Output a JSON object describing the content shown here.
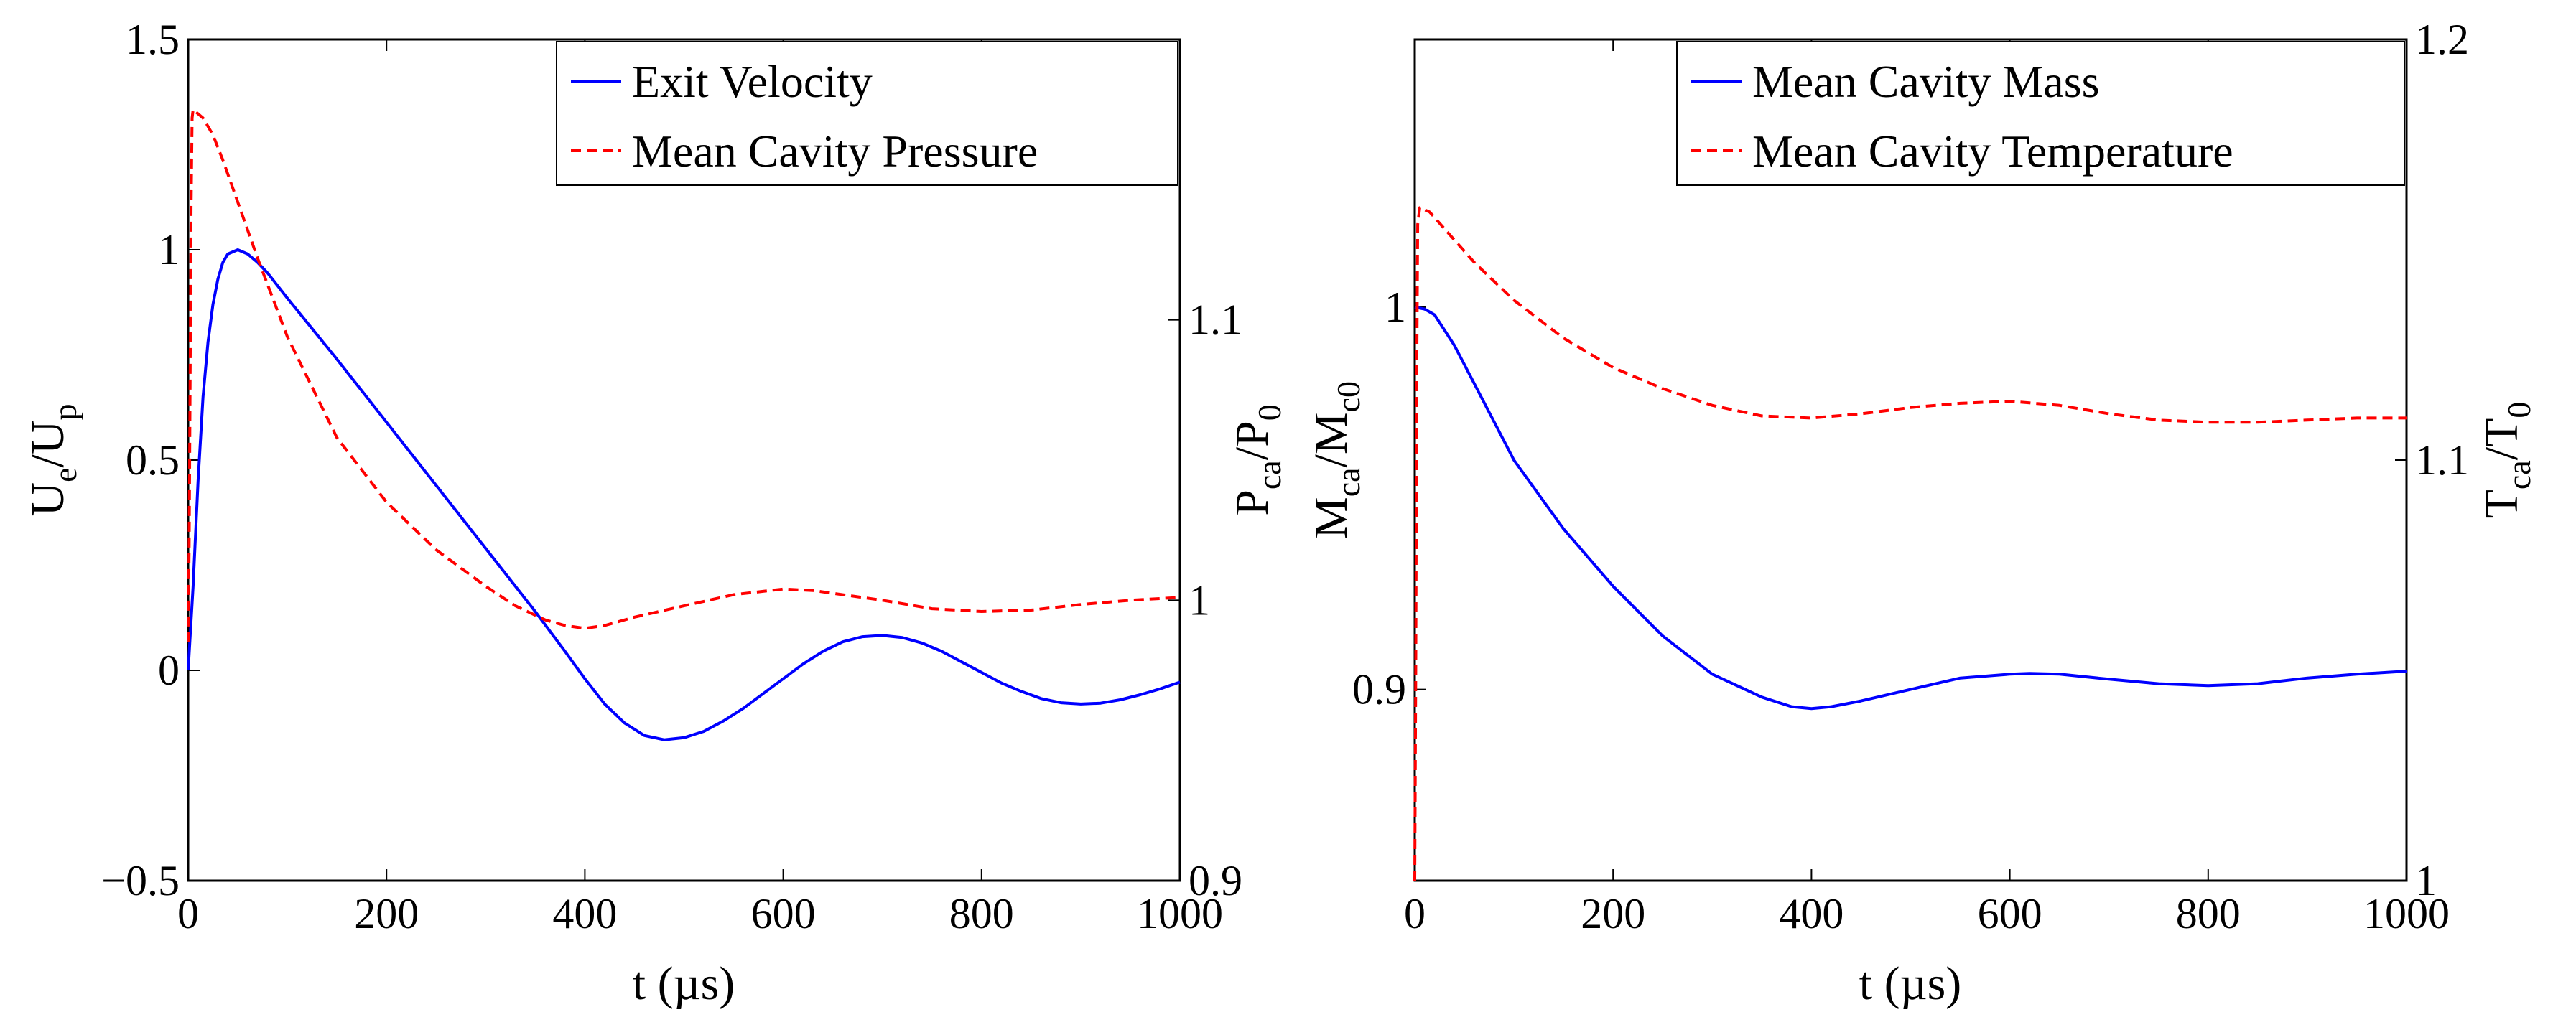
{
  "chart_data": [
    {
      "type": "line",
      "id": "left",
      "title": "",
      "xlabel": "t (µs)",
      "ylabel": {
        "main": "U",
        "sub1": "e",
        "mid": "/U",
        "sub2": "p"
      },
      "y2label": {
        "main": "P",
        "sub1": "ca",
        "mid": "/P",
        "sub2": "0"
      },
      "xlim": [
        0,
        1000
      ],
      "ylim": [
        -0.5,
        1.5
      ],
      "y2lim": [
        0.9,
        1.2
      ],
      "xticks": [
        "0",
        "200",
        "400",
        "600",
        "800",
        "1000"
      ],
      "yticks": [
        "−0.5",
        "0",
        "0.5",
        "1",
        "1.5"
      ],
      "y2ticks": [
        "0.9",
        "1",
        "1.1"
      ],
      "grid": false,
      "legend_position": "top-right",
      "series": [
        {
          "name": "Exit Velocity",
          "axis": "left",
          "color": "#0000ff",
          "style": "solid",
          "points": [
            [
              0,
              0
            ],
            [
              5,
              0.2
            ],
            [
              10,
              0.45
            ],
            [
              15,
              0.65
            ],
            [
              20,
              0.78
            ],
            [
              25,
              0.87
            ],
            [
              30,
              0.93
            ],
            [
              35,
              0.97
            ],
            [
              40,
              0.99
            ],
            [
              50,
              1.0
            ],
            [
              60,
              0.99
            ],
            [
              70,
              0.97
            ],
            [
              80,
              0.945
            ],
            [
              100,
              0.885
            ],
            [
              150,
              0.74
            ],
            [
              200,
              0.59
            ],
            [
              250,
              0.44
            ],
            [
              300,
              0.29
            ],
            [
              350,
              0.14
            ],
            [
              380,
              0.045
            ],
            [
              400,
              -0.02
            ],
            [
              420,
              -0.08
            ],
            [
              440,
              -0.125
            ],
            [
              460,
              -0.155
            ],
            [
              480,
              -0.165
            ],
            [
              500,
              -0.16
            ],
            [
              520,
              -0.145
            ],
            [
              540,
              -0.12
            ],
            [
              560,
              -0.09
            ],
            [
              580,
              -0.055
            ],
            [
              600,
              -0.02
            ],
            [
              620,
              0.015
            ],
            [
              640,
              0.045
            ],
            [
              660,
              0.068
            ],
            [
              680,
              0.08
            ],
            [
              700,
              0.083
            ],
            [
              720,
              0.078
            ],
            [
              740,
              0.065
            ],
            [
              760,
              0.045
            ],
            [
              780,
              0.02
            ],
            [
              800,
              -0.005
            ],
            [
              820,
              -0.03
            ],
            [
              840,
              -0.05
            ],
            [
              860,
              -0.067
            ],
            [
              880,
              -0.077
            ],
            [
              900,
              -0.08
            ],
            [
              920,
              -0.078
            ],
            [
              940,
              -0.07
            ],
            [
              960,
              -0.058
            ],
            [
              980,
              -0.044
            ],
            [
              1000,
              -0.028
            ]
          ]
        },
        {
          "name": "Mean Cavity Pressure",
          "axis": "right",
          "color": "#ff0000",
          "style": "dashed",
          "points": [
            [
              0,
              0.985
            ],
            [
              1,
              1.02
            ],
            [
              2,
              1.08
            ],
            [
              3,
              1.14
            ],
            [
              4,
              1.172
            ],
            [
              5,
              1.175
            ],
            [
              15,
              1.172
            ],
            [
              25,
              1.166
            ],
            [
              35,
              1.157
            ],
            [
              50,
              1.142
            ],
            [
              70,
              1.122
            ],
            [
              100,
              1.094
            ],
            [
              150,
              1.058
            ],
            [
              200,
              1.035
            ],
            [
              250,
              1.018
            ],
            [
              300,
              1.005
            ],
            [
              330,
              0.998
            ],
            [
              360,
              0.993
            ],
            [
              380,
              0.991
            ],
            [
              400,
              0.99
            ],
            [
              420,
              0.991
            ],
            [
              450,
              0.994
            ],
            [
              500,
              0.998
            ],
            [
              550,
              1.002
            ],
            [
              600,
              1.004
            ],
            [
              630,
              1.0035
            ],
            [
              650,
              1.0025
            ],
            [
              700,
              1.0
            ],
            [
              750,
              0.997
            ],
            [
              800,
              0.996
            ],
            [
              850,
              0.9965
            ],
            [
              900,
              0.9985
            ],
            [
              950,
              1.0
            ],
            [
              1000,
              1.001
            ]
          ]
        }
      ]
    },
    {
      "type": "line",
      "id": "right",
      "title": "",
      "xlabel": "t (µs)",
      "ylabel": {
        "main": "M",
        "sub1": "ca",
        "mid": "/M",
        "sub2": "c0"
      },
      "y2label": {
        "main": "T",
        "sub1": "ca",
        "mid": "/T",
        "sub2": "0"
      },
      "xlim": [
        0,
        1000
      ],
      "ylim": [
        0.85,
        1.07
      ],
      "y2lim": [
        1.0,
        1.2
      ],
      "xticks": [
        "0",
        "200",
        "400",
        "600",
        "800",
        "1000"
      ],
      "yticks": [
        "0.9",
        "1"
      ],
      "y2ticks": [
        "1",
        "1.1",
        "1.2"
      ],
      "grid": false,
      "legend_position": "top-right",
      "series": [
        {
          "name": "Mean Cavity Mass",
          "axis": "left",
          "color": "#0000ff",
          "style": "solid",
          "points": [
            [
              0,
              1.0
            ],
            [
              10,
              0.9995
            ],
            [
              20,
              0.998
            ],
            [
              40,
              0.99
            ],
            [
              60,
              0.98
            ],
            [
              80,
              0.97
            ],
            [
              100,
              0.96
            ],
            [
              150,
              0.942
            ],
            [
              200,
              0.927
            ],
            [
              250,
              0.914
            ],
            [
              300,
              0.904
            ],
            [
              350,
              0.898
            ],
            [
              380,
              0.8955
            ],
            [
              400,
              0.895
            ],
            [
              420,
              0.8955
            ],
            [
              450,
              0.897
            ],
            [
              500,
              0.9
            ],
            [
              550,
              0.903
            ],
            [
              600,
              0.904
            ],
            [
              620,
              0.9042
            ],
            [
              650,
              0.904
            ],
            [
              700,
              0.9027
            ],
            [
              750,
              0.9015
            ],
            [
              800,
              0.901
            ],
            [
              850,
              0.9015
            ],
            [
              900,
              0.903
            ],
            [
              950,
              0.904
            ],
            [
              1000,
              0.9048
            ]
          ]
        },
        {
          "name": "Mean Cavity Temperature",
          "axis": "right",
          "color": "#ff0000",
          "style": "dashed",
          "points": [
            [
              0,
              1.0
            ],
            [
              1,
              1.05
            ],
            [
              2,
              1.12
            ],
            [
              3,
              1.156
            ],
            [
              5,
              1.16
            ],
            [
              15,
              1.159
            ],
            [
              30,
              1.155
            ],
            [
              60,
              1.147
            ],
            [
              100,
              1.138
            ],
            [
              150,
              1.129
            ],
            [
              200,
              1.122
            ],
            [
              250,
              1.117
            ],
            [
              300,
              1.113
            ],
            [
              350,
              1.1105
            ],
            [
              400,
              1.11
            ],
            [
              450,
              1.111
            ],
            [
              500,
              1.1125
            ],
            [
              550,
              1.1135
            ],
            [
              600,
              1.114
            ],
            [
              650,
              1.113
            ],
            [
              700,
              1.111
            ],
            [
              750,
              1.1095
            ],
            [
              800,
              1.109
            ],
            [
              850,
              1.109
            ],
            [
              900,
              1.1095
            ],
            [
              950,
              1.11
            ],
            [
              1000,
              1.11
            ]
          ]
        }
      ]
    }
  ]
}
